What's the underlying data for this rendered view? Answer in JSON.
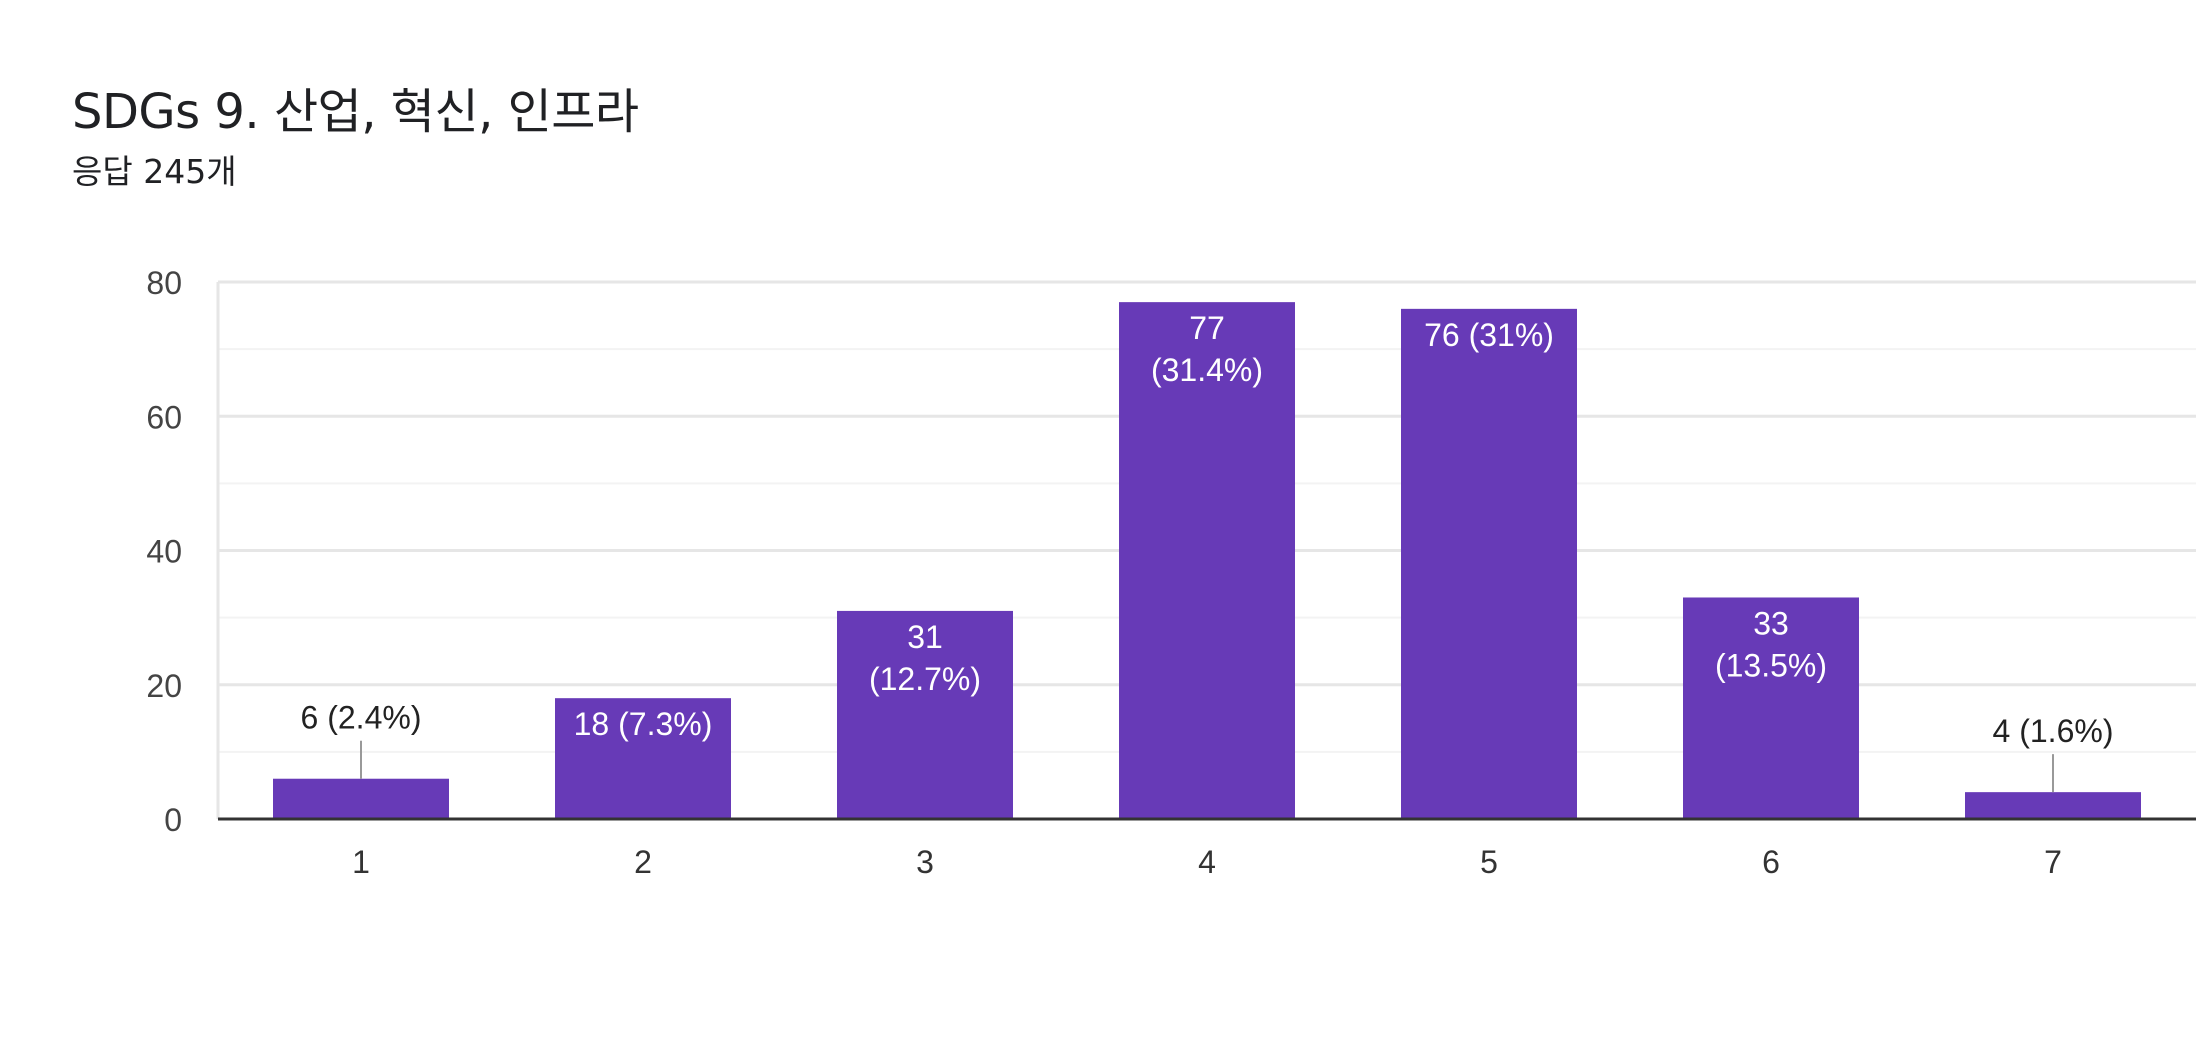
{
  "header": {
    "title": "SDGs 9. 산업, 혁신, 인프라",
    "subtitle": "응답 245개"
  },
  "colors": {
    "bar": "#673AB7",
    "grid_major": "#e6e6e6",
    "grid_minor": "#f3f3f3",
    "axis": "#333333",
    "tick_text": "#444444",
    "label_inside": "#ffffff",
    "label_outside": "#222222",
    "leader": "#999999"
  },
  "chart_data": {
    "type": "bar",
    "categories": [
      "1",
      "2",
      "3",
      "4",
      "5",
      "6",
      "7"
    ],
    "values": [
      6,
      18,
      31,
      77,
      76,
      33,
      4
    ],
    "data_labels": [
      [
        "6 (2.4%)"
      ],
      [
        "18 (7.3%)"
      ],
      [
        "31",
        "(12.7%)"
      ],
      [
        "77",
        "(31.4%)"
      ],
      [
        "76 (31%)"
      ],
      [
        "33",
        "(13.5%)"
      ],
      [
        "4 (1.6%)"
      ]
    ],
    "label_outside": [
      true,
      false,
      false,
      false,
      false,
      false,
      true
    ],
    "ylim": [
      0,
      80
    ],
    "yticks": [
      "0",
      "20",
      "40",
      "60",
      "80"
    ],
    "grid": true,
    "legend": "none"
  }
}
